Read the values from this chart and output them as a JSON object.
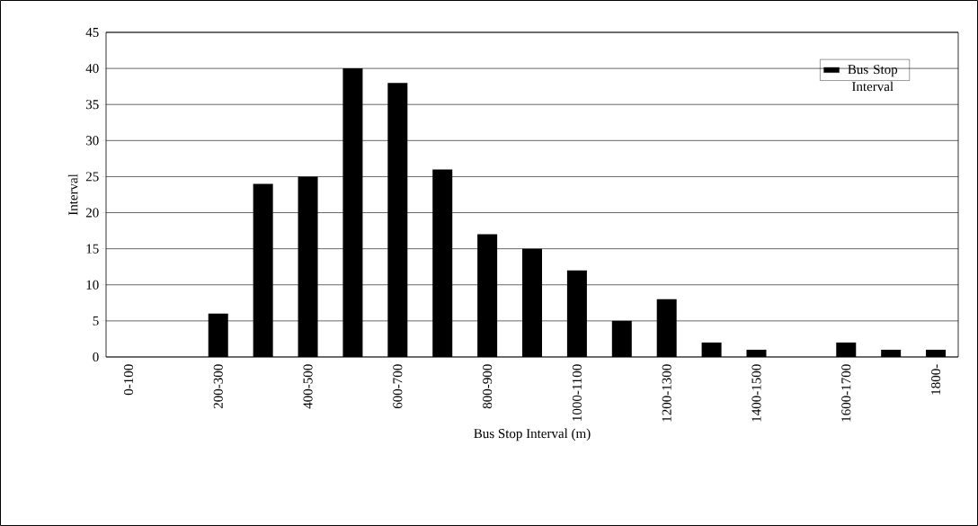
{
  "chart_data": {
    "type": "bar",
    "xlabel": "Bus Stop Interval (m)",
    "ylabel": "Interval",
    "categories": [
      "0-100",
      null,
      "200-300",
      null,
      "400-500",
      null,
      "600-700",
      null,
      "800-900",
      null,
      "1000-1100",
      null,
      "1200-1300",
      null,
      "1400-1500",
      null,
      "1600-1700",
      null,
      "1800-"
    ],
    "series": [
      {
        "name": "Bus Stop Interval",
        "color": "#000000",
        "values": [
          0,
          0,
          6,
          24,
          25,
          40,
          38,
          26,
          17,
          15,
          12,
          5,
          8,
          2,
          1,
          0,
          2,
          1,
          1
        ]
      }
    ],
    "ylim": [
      0,
      45
    ],
    "yticks": [
      0,
      5,
      10,
      15,
      20,
      25,
      30,
      35,
      40,
      45
    ],
    "grid": "y",
    "legend": "top right"
  }
}
